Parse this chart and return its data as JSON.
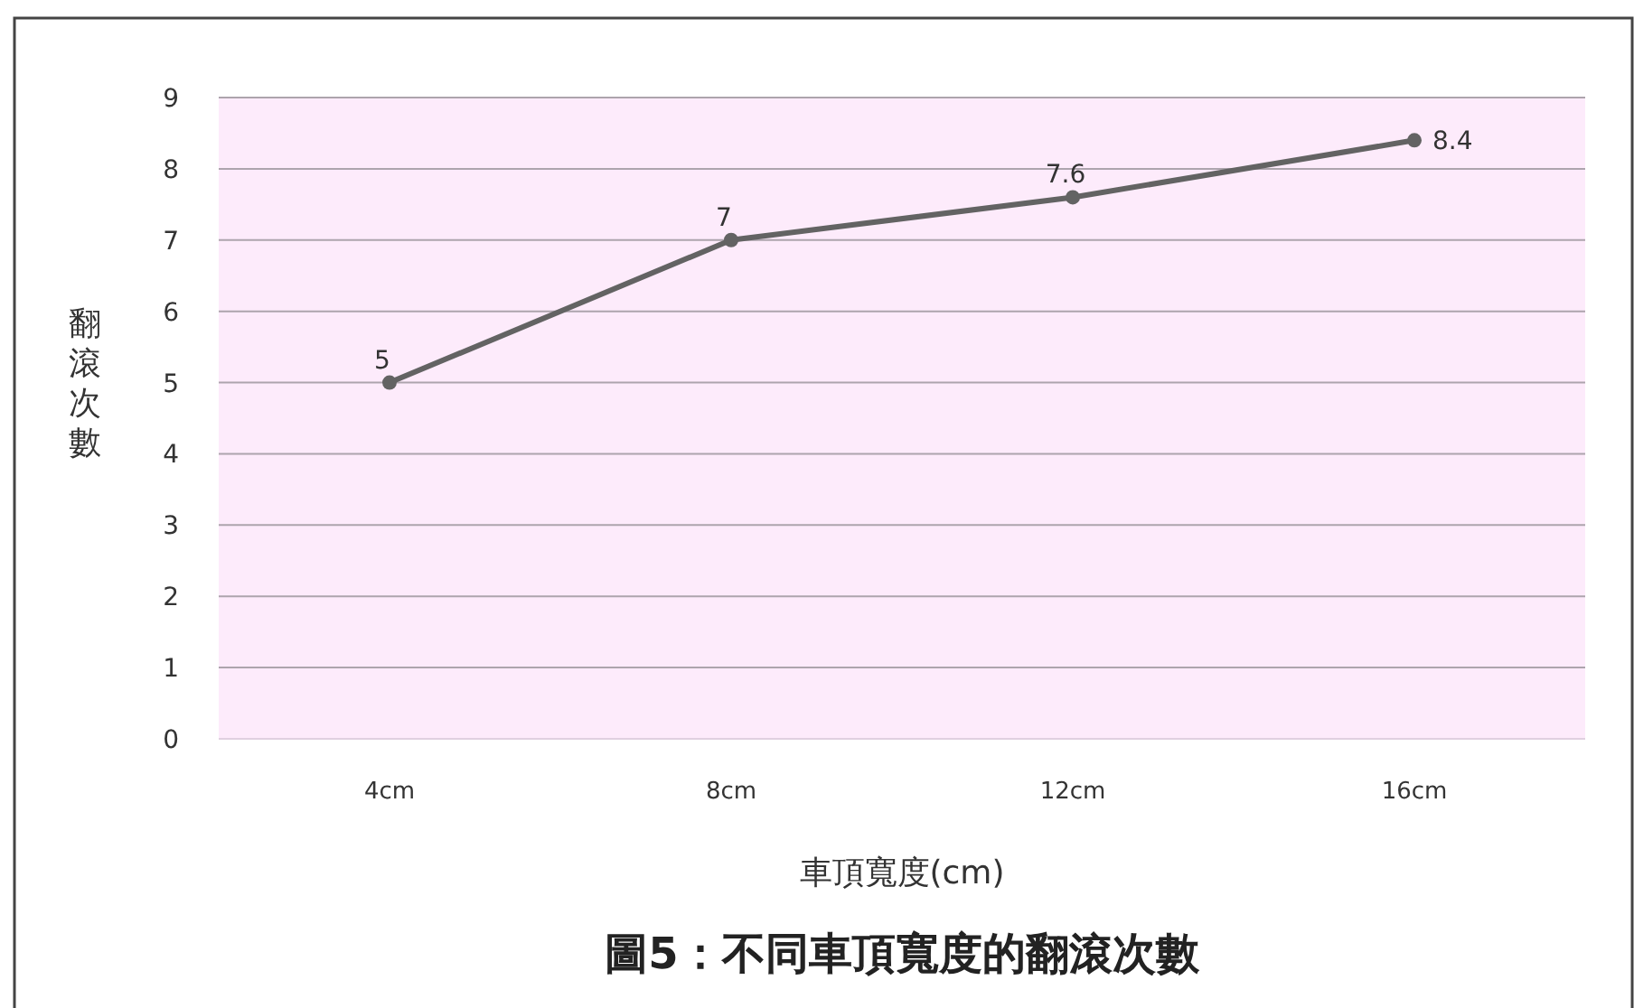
{
  "chart_data": {
    "type": "line",
    "title": "圖5：不同車頂寬度的翻滾次數",
    "xlabel": "車頂寬度(cm)",
    "ylabel": "翻滾次數",
    "categories": [
      "4cm",
      "8cm",
      "12cm",
      "16cm"
    ],
    "series": [
      {
        "color": "#636363",
        "values": [
          5,
          7,
          7.6,
          8.4
        ]
      }
    ],
    "ylim": [
      0,
      9
    ],
    "yticks": [
      0,
      1,
      2,
      3,
      4,
      5,
      6,
      7,
      8,
      9
    ],
    "grid": "y",
    "marker": "circle",
    "line_style": "solid",
    "data_labels": true
  }
}
